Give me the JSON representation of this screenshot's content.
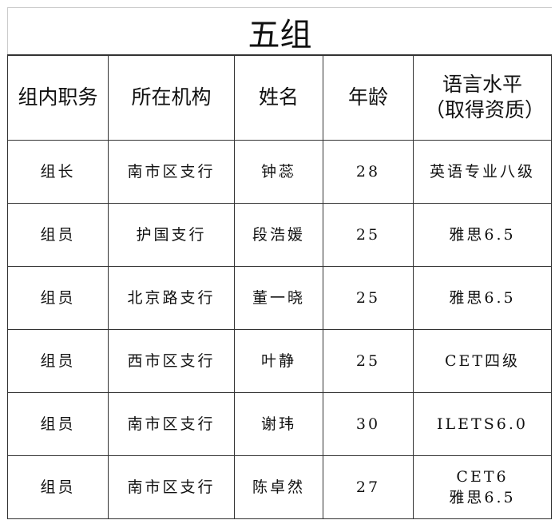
{
  "title": "五组",
  "headers": [
    "组内职务",
    "所在机构",
    "姓名",
    "年龄",
    "语言水平（取得资质）"
  ],
  "rows": [
    [
      "组长",
      "南市区支行",
      "钟蕊",
      "28",
      "英语专业八级"
    ],
    [
      "组员",
      "护国支行",
      "段浩媛",
      "25",
      "雅思6.5"
    ],
    [
      "组员",
      "北京路支行",
      "董一晓",
      "25",
      "雅思6.5"
    ],
    [
      "组员",
      "西市区支行",
      "叶静",
      "25",
      "CET四级"
    ],
    [
      "组员",
      "南市区支行",
      "谢玮",
      "30",
      "ILETS6.0"
    ],
    [
      "组员",
      "南市区支行",
      "陈卓然",
      "27",
      "CET6\n雅思6.5"
    ]
  ]
}
